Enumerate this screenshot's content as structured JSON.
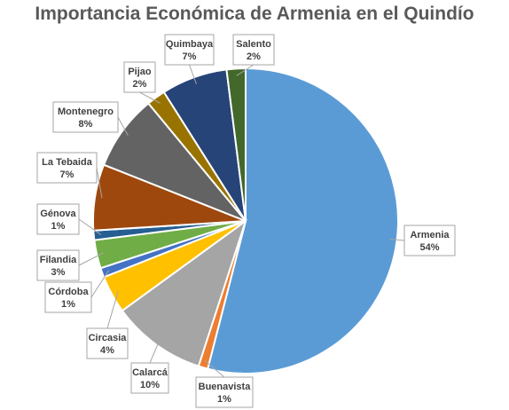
{
  "chart_data": {
    "type": "pie",
    "title": "Importancia Económica de Armenia en el Quindío",
    "start_angle_deg": 0,
    "direction": "clockwise",
    "slices": [
      {
        "label": "Armenia",
        "value": 54,
        "display": "54%",
        "color": "#5b9bd5"
      },
      {
        "label": "Buenavista",
        "value": 1,
        "display": "1%",
        "color": "#ed7d31"
      },
      {
        "label": "Calarcá",
        "value": 10,
        "display": "10%",
        "color": "#a5a5a5"
      },
      {
        "label": "Circasia",
        "value": 4,
        "display": "4%",
        "color": "#ffc000"
      },
      {
        "label": "Córdoba",
        "value": 1,
        "display": "1%",
        "color": "#4472c4"
      },
      {
        "label": "Filandia",
        "value": 3,
        "display": "3%",
        "color": "#70ad47"
      },
      {
        "label": "Génova",
        "value": 1,
        "display": "1%",
        "color": "#255e91"
      },
      {
        "label": "La Tebaida",
        "value": 7,
        "display": "7%",
        "color": "#9e480e"
      },
      {
        "label": "Montenegro",
        "value": 8,
        "display": "8%",
        "color": "#636363"
      },
      {
        "label": "Pijao",
        "value": 2,
        "display": "2%",
        "color": "#997300"
      },
      {
        "label": "Quimbaya",
        "value": 7,
        "display": "7%",
        "color": "#264478"
      },
      {
        "label": "Salento",
        "value": 2,
        "display": "2%",
        "color": "#43682b"
      }
    ]
  }
}
